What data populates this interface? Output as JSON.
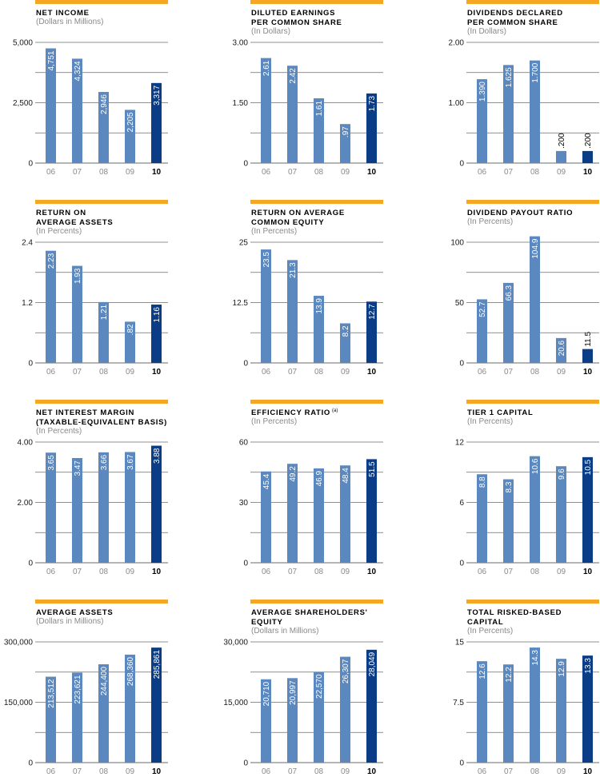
{
  "colors": {
    "accent_bar": "#f5a623",
    "bar": "#5b89bf",
    "bar_highlight": "#0b3d86",
    "gridline": "#6b6b6b",
    "label_on_bar": "#ffffff",
    "label_outside": "#000000",
    "subtitle": "#8a8a8a"
  },
  "chart_data": [
    {
      "type": "bar",
      "title_lines": [
        "NET INCOME"
      ],
      "subtitle": "(Dollars in Millions)",
      "categories": [
        "06",
        "07",
        "08",
        "09",
        "10"
      ],
      "highlight_index": 4,
      "values": [
        4751,
        4324,
        2946,
        2205,
        3317
      ],
      "value_labels": [
        "4,751",
        "4,324",
        "2,946",
        "2,205",
        "3,317"
      ],
      "yticks": [
        "5,000",
        "2,500",
        "0"
      ],
      "ylim": [
        0,
        5000
      ],
      "grid": true
    },
    {
      "type": "bar",
      "title_lines": [
        "DILUTED EARNINGS",
        "PER COMMON SHARE"
      ],
      "subtitle": "(In Dollars)",
      "categories": [
        "06",
        "07",
        "08",
        "09",
        "10"
      ],
      "highlight_index": 4,
      "values": [
        2.61,
        2.42,
        1.61,
        0.97,
        1.73
      ],
      "value_labels": [
        "2.61",
        "2.42",
        "1.61",
        ".97",
        "1.73"
      ],
      "yticks": [
        "3.00",
        "1.50",
        "0"
      ],
      "ylim": [
        0,
        3
      ],
      "grid": true
    },
    {
      "type": "bar",
      "title_lines": [
        "DIVIDENDS DECLARED",
        "PER COMMON SHARE"
      ],
      "subtitle": "(In Dollars)",
      "categories": [
        "06",
        "07",
        "08",
        "09",
        "10"
      ],
      "highlight_index": 4,
      "values": [
        1.39,
        1.625,
        1.7,
        0.2,
        0.2
      ],
      "value_labels": [
        "1.390",
        "1.625",
        "1.700",
        ".200",
        ".200"
      ],
      "yticks": [
        "2.00",
        "1.00",
        "0"
      ],
      "ylim": [
        0,
        2
      ],
      "grid": true
    },
    {
      "type": "bar",
      "title_lines": [
        "RETURN ON",
        "AVERAGE ASSETS"
      ],
      "subtitle": "(In Percents)",
      "categories": [
        "06",
        "07",
        "08",
        "09",
        "10"
      ],
      "highlight_index": 4,
      "values": [
        2.23,
        1.93,
        1.21,
        0.82,
        1.16
      ],
      "value_labels": [
        "2.23",
        "1.93",
        "1.21",
        ".82",
        "1.16"
      ],
      "yticks": [
        "2.4",
        "1.2",
        "0"
      ],
      "ylim": [
        0,
        2.4
      ],
      "grid": true
    },
    {
      "type": "bar",
      "title_lines": [
        "RETURN ON AVERAGE",
        "COMMON EQUITY"
      ],
      "subtitle": "(In Percents)",
      "categories": [
        "06",
        "07",
        "08",
        "09",
        "10"
      ],
      "highlight_index": 4,
      "values": [
        23.5,
        21.3,
        13.9,
        8.2,
        12.7
      ],
      "value_labels": [
        "23.5",
        "21.3",
        "13.9",
        "8.2",
        "12.7"
      ],
      "yticks": [
        "25",
        "12.5",
        "0"
      ],
      "ylim": [
        0,
        25
      ],
      "grid": true
    },
    {
      "type": "bar",
      "title_lines": [
        "DIVIDEND PAYOUT RATIO"
      ],
      "subtitle": "(In Percents)",
      "categories": [
        "06",
        "07",
        "08",
        "09",
        "10"
      ],
      "highlight_index": 4,
      "values": [
        52.7,
        66.3,
        104.9,
        20.6,
        11.5
      ],
      "value_labels": [
        "52.7",
        "66.3",
        "104.9",
        "20.6",
        "11.5"
      ],
      "yticks": [
        "100",
        "50",
        "0"
      ],
      "ylim": [
        0,
        100
      ],
      "grid": true
    },
    {
      "type": "bar",
      "title_lines": [
        "NET INTEREST MARGIN",
        "(TAXABLE-EQUIVALENT BASIS)"
      ],
      "subtitle": "(In Percents)",
      "categories": [
        "06",
        "07",
        "08",
        "09",
        "10"
      ],
      "highlight_index": 4,
      "values": [
        3.65,
        3.47,
        3.66,
        3.67,
        3.88
      ],
      "value_labels": [
        "3.65",
        "3.47",
        "3.66",
        "3.67",
        "3.88"
      ],
      "yticks": [
        "4.00",
        "2.00",
        "0"
      ],
      "ylim": [
        0,
        4
      ],
      "grid": true
    },
    {
      "type": "bar",
      "title_lines": [
        "EFFICIENCY RATIO"
      ],
      "title_superscript": "(a)",
      "subtitle": "(In Percents)",
      "categories": [
        "06",
        "07",
        "08",
        "09",
        "10"
      ],
      "highlight_index": 4,
      "values": [
        45.4,
        49.2,
        46.9,
        48.4,
        51.5
      ],
      "value_labels": [
        "45.4",
        "49.2",
        "46.9",
        "48.4",
        "51.5"
      ],
      "yticks": [
        "60",
        "30",
        "0"
      ],
      "ylim": [
        0,
        60
      ],
      "grid": true
    },
    {
      "type": "bar",
      "title_lines": [
        "TIER 1 CAPITAL"
      ],
      "subtitle": "(In Percents)",
      "categories": [
        "06",
        "07",
        "08",
        "09",
        "10"
      ],
      "highlight_index": 4,
      "values": [
        8.8,
        8.3,
        10.6,
        9.6,
        10.5
      ],
      "value_labels": [
        "8.8",
        "8.3",
        "10.6",
        "9.6",
        "10.5"
      ],
      "yticks": [
        "12",
        "6",
        "0"
      ],
      "ylim": [
        0,
        12
      ],
      "grid": true
    },
    {
      "type": "bar",
      "title_lines": [
        "AVERAGE ASSETS"
      ],
      "subtitle": "(Dollars in Millions)",
      "categories": [
        "06",
        "07",
        "08",
        "09",
        "10"
      ],
      "highlight_index": 4,
      "values": [
        213512,
        223621,
        244400,
        268360,
        285861
      ],
      "value_labels": [
        "213,512",
        "223,621",
        "244,400",
        "268,360",
        "285,861"
      ],
      "yticks": [
        "300,000",
        "150,000",
        "0"
      ],
      "ylim": [
        0,
        300000
      ],
      "grid": true
    },
    {
      "type": "bar",
      "title_lines": [
        "AVERAGE SHAREHOLDERS'",
        "EQUITY"
      ],
      "subtitle": "(Dollars in Millions)",
      "categories": [
        "06",
        "07",
        "08",
        "09",
        "10"
      ],
      "highlight_index": 4,
      "values": [
        20710,
        20997,
        22570,
        26307,
        28049
      ],
      "value_labels": [
        "20,710",
        "20,997",
        "22,570",
        "26,307",
        "28,049"
      ],
      "yticks": [
        "30,000",
        "15,000",
        "0"
      ],
      "ylim": [
        0,
        30000
      ],
      "grid": true
    },
    {
      "type": "bar",
      "title_lines": [
        "TOTAL RISKED-BASED",
        "CAPITAL"
      ],
      "subtitle": "(In Percents)",
      "categories": [
        "06",
        "07",
        "08",
        "09",
        "10"
      ],
      "highlight_index": 4,
      "values": [
        12.6,
        12.2,
        14.3,
        12.9,
        13.3
      ],
      "value_labels": [
        "12.6",
        "12.2",
        "14.3",
        "12.9",
        "13.3"
      ],
      "yticks": [
        "15",
        "7.5",
        "0"
      ],
      "ylim": [
        0,
        15
      ],
      "grid": true
    }
  ]
}
